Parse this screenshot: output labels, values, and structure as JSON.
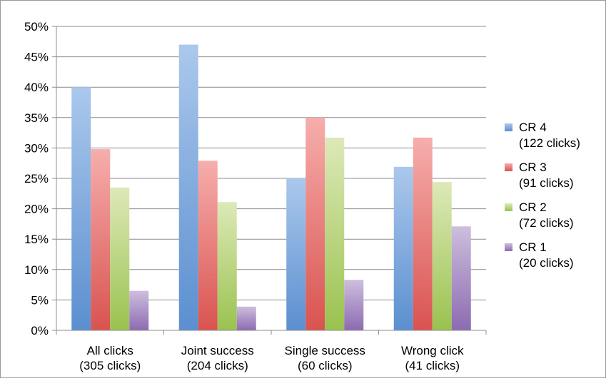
{
  "chart_data": {
    "type": "bar",
    "title": "",
    "xlabel": "",
    "ylabel": "",
    "ylim": [
      0,
      50
    ],
    "y_tick_format": "percent",
    "y_ticks": [
      "0%",
      "5%",
      "10%",
      "15%",
      "20%",
      "25%",
      "30%",
      "35%",
      "40%",
      "45%",
      "50%"
    ],
    "grid": true,
    "legend_position": "right",
    "categories": [
      [
        "All clicks",
        "(305 clicks)"
      ],
      [
        "Joint success",
        "(204 clicks)"
      ],
      [
        "Single success",
        "(60 clicks)"
      ],
      [
        "Wrong click",
        "(41 clicks)"
      ]
    ],
    "series": [
      {
        "name": "CR 4",
        "note": "(122 clicks)",
        "color": "#5b8fd0",
        "color_light": "#abc8ec",
        "values": [
          40.0,
          47.0,
          25.0,
          26.9
        ]
      },
      {
        "name": "CR 3",
        "note": "(91 clicks)",
        "color": "#d95350",
        "color_light": "#f6aeac",
        "values": [
          29.8,
          27.9,
          35.0,
          31.7
        ]
      },
      {
        "name": "CR 2",
        "note": "(72 clicks)",
        "color": "#9ac24f",
        "color_light": "#dde9b8",
        "values": [
          23.5,
          21.1,
          31.7,
          24.4
        ]
      },
      {
        "name": "CR 1",
        "note": "(20 clicks)",
        "color": "#8c6bb1",
        "color_light": "#cdbedd",
        "values": [
          6.5,
          3.9,
          8.3,
          17.1
        ]
      }
    ]
  }
}
